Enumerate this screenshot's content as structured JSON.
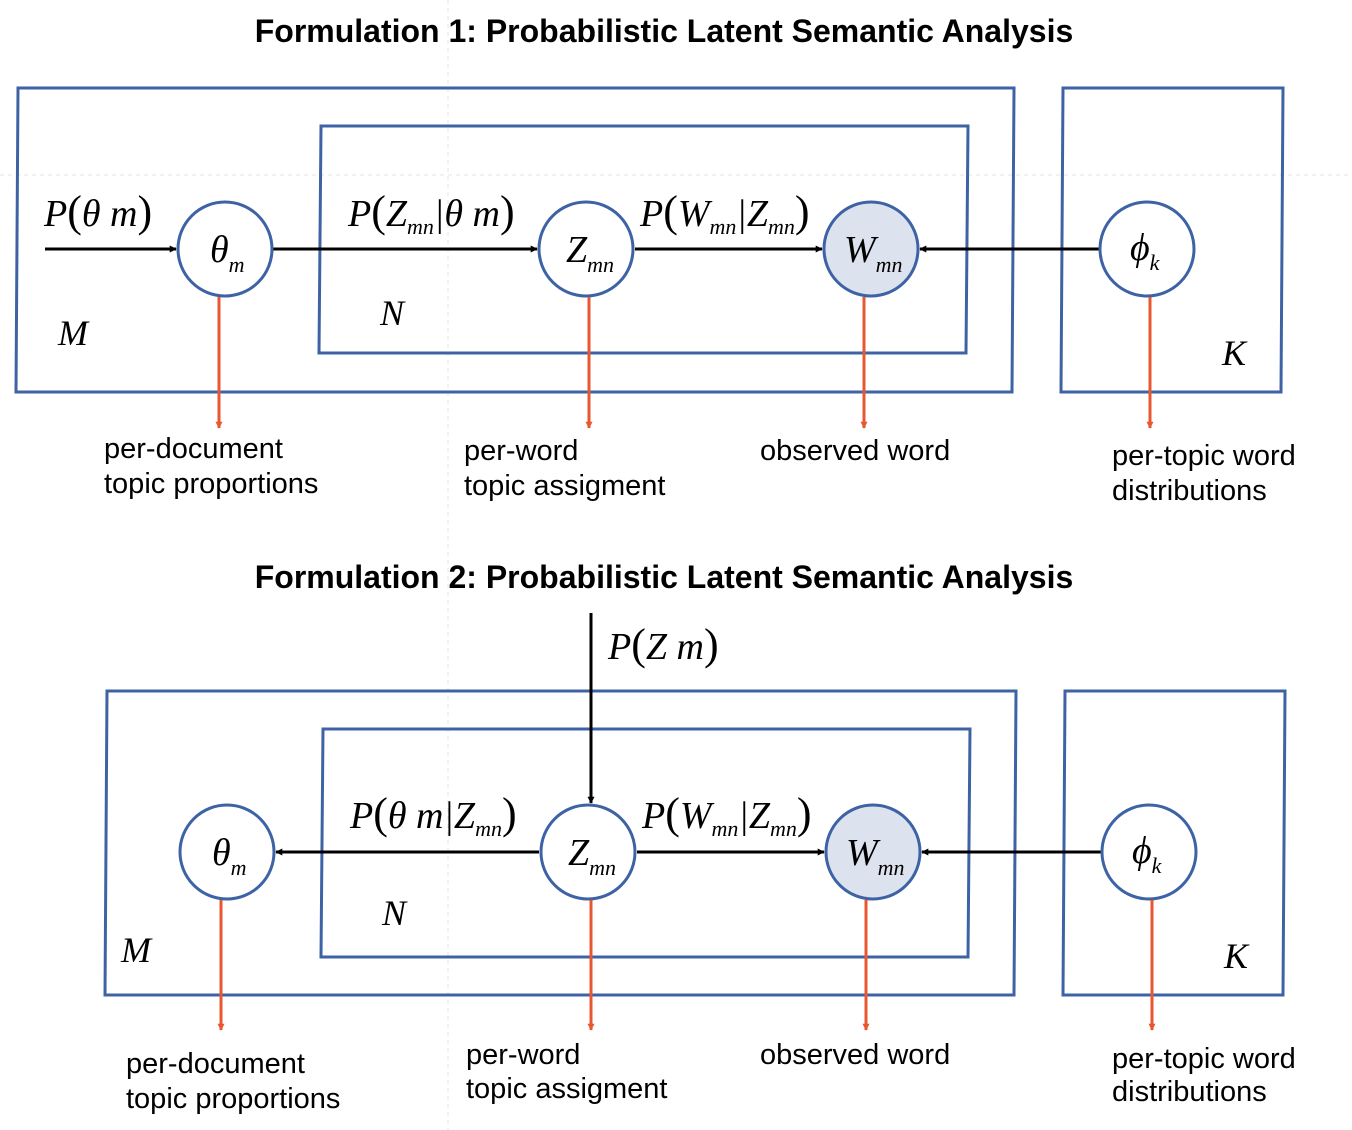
{
  "f1": {
    "title": "Formulation 1: Probabilistic Latent Semantic Analysis",
    "plates": {
      "M": "M",
      "N": "N",
      "K": "K"
    },
    "edges": {
      "p_theta": {
        "P": "P",
        "var": "θ m"
      },
      "p_z_given_theta": {
        "P": "P",
        "Z": "Z",
        "sub": "mn",
        "rest": "|θ m"
      },
      "p_w_given_z": {
        "P": "P",
        "W": "W",
        "sub1": "mn",
        "bar": "|",
        "Z": "Z",
        "sub2": "mn"
      }
    },
    "nodes": {
      "theta": {
        "sym": "θ",
        "sub": "m"
      },
      "z": {
        "sym": "Z",
        "sub": "mn"
      },
      "w": {
        "sym": "W",
        "sub": "mn"
      },
      "phi": {
        "sym": "ϕ",
        "sub": "k"
      }
    },
    "captions": {
      "theta": [
        "per-document",
        "topic proportions"
      ],
      "z": [
        "per-word",
        "topic assigment"
      ],
      "w": [
        "observed word"
      ],
      "phi": [
        "per-topic word",
        "distributions"
      ]
    }
  },
  "f2": {
    "title": "Formulation 2: Probabilistic Latent Semantic Analysis",
    "plates": {
      "M": "M",
      "N": "N",
      "K": "K"
    },
    "edges": {
      "p_z": {
        "P": "P",
        "var": "Z m"
      },
      "p_theta_given_z": {
        "P": "P",
        "pre": "θ m|Z",
        "sub": "mn"
      },
      "p_w_given_z": {
        "P": "P",
        "W": "W",
        "sub1": "mn",
        "bar": "|",
        "Z": "Z",
        "sub2": "mn"
      }
    },
    "nodes": {
      "theta": {
        "sym": "θ",
        "sub": "m"
      },
      "z": {
        "sym": "Z",
        "sub": "mn"
      },
      "w": {
        "sym": "W",
        "sub": "mn"
      },
      "phi": {
        "sym": "ϕ",
        "sub": "k"
      }
    },
    "captions": {
      "theta": [
        "per-document",
        "topic proportions"
      ],
      "z": [
        "per-word",
        "topic assigment"
      ],
      "w": [
        "observed word"
      ],
      "phi": [
        "per-topic word",
        "distributions"
      ]
    }
  },
  "colors": {
    "plate": "#3e63a5",
    "observed_fill": "#dde3ee",
    "caption_arrow": "#e8572f",
    "edge": "#000000"
  }
}
